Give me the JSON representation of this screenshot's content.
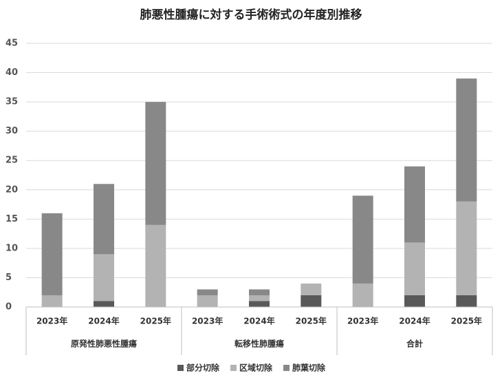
{
  "chart_data": {
    "type": "stacked_bar",
    "title": "肺悪性腫瘍に対する手術術式の年度別推移",
    "categories": [
      "2023年",
      "2024年",
      "2025年",
      "2023年",
      "2024年",
      "2025年",
      "2023年",
      "2024年",
      "2025年"
    ],
    "groups": [
      "原発性肺悪性腫瘍",
      "転移性肺腫瘍",
      "合計"
    ],
    "series": [
      {
        "name": "部分切除",
        "color": "#595959",
        "values": [
          0,
          1,
          0,
          0,
          1,
          2,
          0,
          2,
          2
        ]
      },
      {
        "name": "区域切除",
        "color": "#b3b3b3",
        "values": [
          2,
          8,
          14,
          2,
          1,
          2,
          4,
          9,
          16
        ]
      },
      {
        "name": "肺葉切除",
        "color": "#888888",
        "values": [
          14,
          12,
          21,
          1,
          1,
          0,
          15,
          13,
          21
        ]
      }
    ],
    "ylim": [
      0,
      45
    ],
    "yticks": [
      0,
      5,
      10,
      15,
      20,
      25,
      30,
      35,
      40,
      45
    ],
    "grid": true,
    "legend": "bottom"
  }
}
